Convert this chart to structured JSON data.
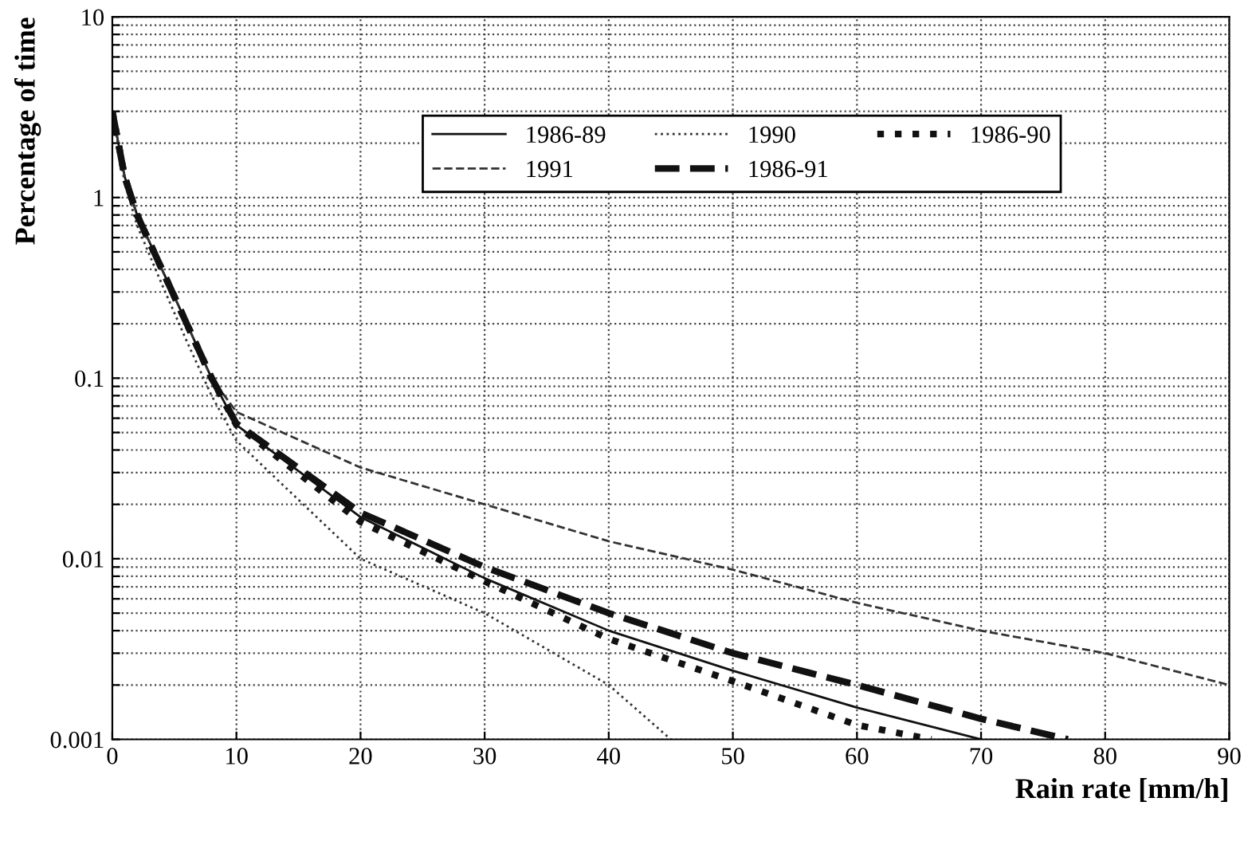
{
  "chart_data": {
    "type": "line",
    "xlabel": "Rain rate [mm/h]",
    "ylabel": "Percentage of time",
    "log": "y",
    "xlim": [
      0,
      90
    ],
    "ylim": [
      0.001,
      10
    ],
    "xticks": [
      0,
      10,
      20,
      30,
      40,
      50,
      60,
      70,
      80,
      90
    ],
    "yticks": [
      {
        "value": 0.001,
        "label": "0.001"
      },
      {
        "value": 0.002,
        "label": null
      },
      {
        "value": 0.003,
        "label": null
      },
      {
        "value": 0.004,
        "label": null
      },
      {
        "value": 0.005,
        "label": null
      },
      {
        "value": 0.006,
        "label": null
      },
      {
        "value": 0.007,
        "label": null
      },
      {
        "value": 0.008,
        "label": null
      },
      {
        "value": 0.009,
        "label": null
      },
      {
        "value": 0.01,
        "label": "0.01"
      },
      {
        "value": 0.02,
        "label": null
      },
      {
        "value": 0.03,
        "label": null
      },
      {
        "value": 0.04,
        "label": null
      },
      {
        "value": 0.05,
        "label": null
      },
      {
        "value": 0.06,
        "label": null
      },
      {
        "value": 0.07,
        "label": null
      },
      {
        "value": 0.08,
        "label": null
      },
      {
        "value": 0.09,
        "label": null
      },
      {
        "value": 0.1,
        "label": "0.1"
      },
      {
        "value": 0.2,
        "label": null
      },
      {
        "value": 0.3,
        "label": null
      },
      {
        "value": 0.4,
        "label": null
      },
      {
        "value": 0.5,
        "label": null
      },
      {
        "value": 0.6,
        "label": null
      },
      {
        "value": 0.7,
        "label": null
      },
      {
        "value": 0.8,
        "label": null
      },
      {
        "value": 0.9,
        "label": null
      },
      {
        "value": 1,
        "label": "1"
      },
      {
        "value": 2,
        "label": null
      },
      {
        "value": 3,
        "label": null
      },
      {
        "value": 4,
        "label": null
      },
      {
        "value": 5,
        "label": null
      },
      {
        "value": 6,
        "label": null
      },
      {
        "value": 7,
        "label": null
      },
      {
        "value": 8,
        "label": null
      },
      {
        "value": 9,
        "label": null
      },
      {
        "value": 10,
        "label": "10"
      }
    ],
    "grid": true,
    "legend": "top right",
    "series": [
      {
        "name": "1986-89",
        "color": "#111111",
        "line_style": "solid",
        "x": [
          0,
          1,
          2,
          4,
          6,
          8,
          10,
          20,
          30,
          40,
          50,
          60,
          70
        ],
        "values": [
          3,
          1.3,
          0.8,
          0.4,
          0.2,
          0.1,
          0.055,
          0.017,
          0.0078,
          0.004,
          0.0024,
          0.0015,
          0.001
        ]
      },
      {
        "name": "1990",
        "color": "#333333",
        "line_style": "dotted",
        "x": [
          0,
          1,
          2,
          4,
          6,
          8,
          10,
          20,
          30,
          40,
          45
        ],
        "values": [
          3,
          1.2,
          0.7,
          0.33,
          0.16,
          0.08,
          0.045,
          0.01,
          0.005,
          0.002,
          0.001
        ]
      },
      {
        "name": "1986-90",
        "color": "#111111",
        "line_style": "dotted",
        "x": [
          0,
          1,
          2,
          4,
          6,
          8,
          10,
          20,
          30,
          40,
          50,
          60,
          66
        ],
        "values": [
          3,
          1.3,
          0.8,
          0.4,
          0.2,
          0.1,
          0.055,
          0.016,
          0.0075,
          0.0036,
          0.0021,
          0.0012,
          0.001
        ]
      },
      {
        "name": "1991",
        "color": "#333333",
        "line_style": "dashed",
        "x": [
          0,
          1,
          2,
          4,
          6,
          8,
          10,
          20,
          30,
          40,
          50,
          60,
          70,
          80,
          90
        ],
        "values": [
          3,
          1.3,
          0.8,
          0.4,
          0.2,
          0.1,
          0.065,
          0.032,
          0.02,
          0.0125,
          0.0087,
          0.0057,
          0.004,
          0.003,
          0.002
        ]
      },
      {
        "name": "1986-91",
        "color": "#111111",
        "line_style": "dashed",
        "x": [
          0,
          1,
          2,
          4,
          6,
          8,
          10,
          20,
          30,
          40,
          50,
          60,
          70,
          77
        ],
        "values": [
          3,
          1.3,
          0.8,
          0.4,
          0.2,
          0.1,
          0.056,
          0.018,
          0.009,
          0.005,
          0.003,
          0.002,
          0.0013,
          0.001
        ]
      }
    ]
  }
}
